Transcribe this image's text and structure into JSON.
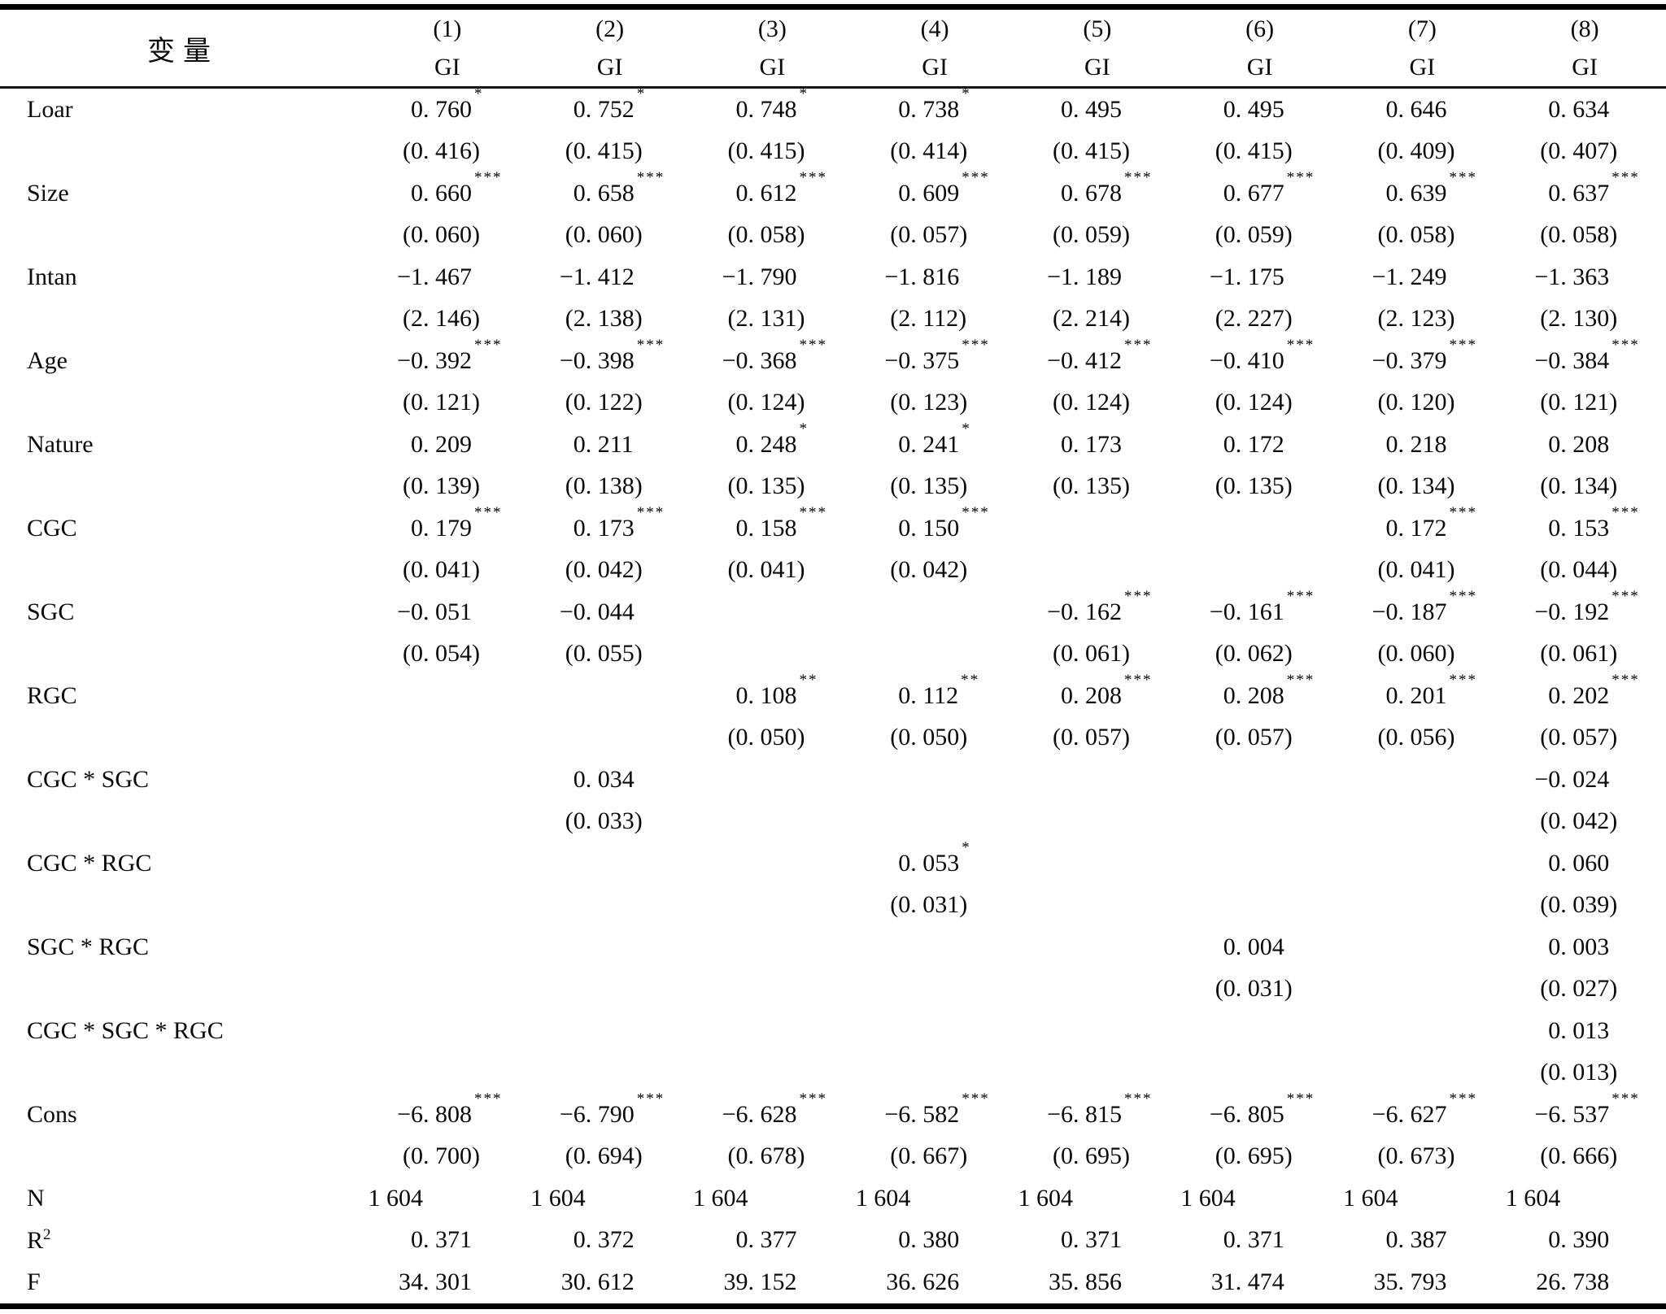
{
  "table": {
    "variable_header": "变量",
    "dependent_variable": "GI",
    "significance_note_symbols": [
      "*",
      "**",
      "***"
    ],
    "columns": [
      {
        "num": "(1)",
        "dv": "GI"
      },
      {
        "num": "(2)",
        "dv": "GI"
      },
      {
        "num": "(3)",
        "dv": "GI"
      },
      {
        "num": "(4)",
        "dv": "GI"
      },
      {
        "num": "(5)",
        "dv": "GI"
      },
      {
        "num": "(6)",
        "dv": "GI"
      },
      {
        "num": "(7)",
        "dv": "GI"
      },
      {
        "num": "(8)",
        "dv": "GI"
      }
    ],
    "rows": [
      {
        "label": "Loar",
        "cells": [
          {
            "c": "0.760",
            "s": "*",
            "e": "0.416"
          },
          {
            "c": "0.752",
            "s": "*",
            "e": "0.415"
          },
          {
            "c": "0.748",
            "s": "*",
            "e": "0.415"
          },
          {
            "c": "0.738",
            "s": "*",
            "e": "0.414"
          },
          {
            "c": "0.495",
            "s": "",
            "e": "0.415"
          },
          {
            "c": "0.495",
            "s": "",
            "e": "0.415"
          },
          {
            "c": "0.646",
            "s": "",
            "e": "0.409"
          },
          {
            "c": "0.634",
            "s": "",
            "e": "0.407"
          }
        ]
      },
      {
        "label": "Size",
        "cells": [
          {
            "c": "0.660",
            "s": "***",
            "e": "0.060"
          },
          {
            "c": "0.658",
            "s": "***",
            "e": "0.060"
          },
          {
            "c": "0.612",
            "s": "***",
            "e": "0.058"
          },
          {
            "c": "0.609",
            "s": "***",
            "e": "0.057"
          },
          {
            "c": "0.678",
            "s": "***",
            "e": "0.059"
          },
          {
            "c": "0.677",
            "s": "***",
            "e": "0.059"
          },
          {
            "c": "0.639",
            "s": "***",
            "e": "0.058"
          },
          {
            "c": "0.637",
            "s": "***",
            "e": "0.058"
          }
        ]
      },
      {
        "label": "Intan",
        "cells": [
          {
            "c": "-1.467",
            "s": "",
            "e": "2.146"
          },
          {
            "c": "-1.412",
            "s": "",
            "e": "2.138"
          },
          {
            "c": "-1.790",
            "s": "",
            "e": "2.131"
          },
          {
            "c": "-1.816",
            "s": "",
            "e": "2.112"
          },
          {
            "c": "-1.189",
            "s": "",
            "e": "2.214"
          },
          {
            "c": "-1.175",
            "s": "",
            "e": "2.227"
          },
          {
            "c": "-1.249",
            "s": "",
            "e": "2.123"
          },
          {
            "c": "-1.363",
            "s": "",
            "e": "2.130"
          }
        ]
      },
      {
        "label": "Age",
        "cells": [
          {
            "c": "-0.392",
            "s": "***",
            "e": "0.121"
          },
          {
            "c": "-0.398",
            "s": "***",
            "e": "0.122"
          },
          {
            "c": "-0.368",
            "s": "***",
            "e": "0.124"
          },
          {
            "c": "-0.375",
            "s": "***",
            "e": "0.123"
          },
          {
            "c": "-0.412",
            "s": "***",
            "e": "0.124"
          },
          {
            "c": "-0.410",
            "s": "***",
            "e": "0.124"
          },
          {
            "c": "-0.379",
            "s": "***",
            "e": "0.120"
          },
          {
            "c": "-0.384",
            "s": "***",
            "e": "0.121"
          }
        ]
      },
      {
        "label": "Nature",
        "cells": [
          {
            "c": "0.209",
            "s": "",
            "e": "0.139"
          },
          {
            "c": "0.211",
            "s": "",
            "e": "0.138"
          },
          {
            "c": "0.248",
            "s": "*",
            "e": "0.135"
          },
          {
            "c": "0.241",
            "s": "*",
            "e": "0.135"
          },
          {
            "c": "0.173",
            "s": "",
            "e": "0.135"
          },
          {
            "c": "0.172",
            "s": "",
            "e": "0.135"
          },
          {
            "c": "0.218",
            "s": "",
            "e": "0.134"
          },
          {
            "c": "0.208",
            "s": "",
            "e": "0.134"
          }
        ]
      },
      {
        "label": "CGC",
        "cells": [
          {
            "c": "0.179",
            "s": "***",
            "e": "0.041"
          },
          {
            "c": "0.173",
            "s": "***",
            "e": "0.042"
          },
          {
            "c": "0.158",
            "s": "***",
            "e": "0.041"
          },
          {
            "c": "0.150",
            "s": "***",
            "e": "0.042"
          },
          null,
          null,
          {
            "c": "0.172",
            "s": "***",
            "e": "0.041"
          },
          {
            "c": "0.153",
            "s": "***",
            "e": "0.044"
          }
        ]
      },
      {
        "label": "SGC",
        "cells": [
          {
            "c": "-0.051",
            "s": "",
            "e": "0.054"
          },
          {
            "c": "-0.044",
            "s": "",
            "e": "0.055"
          },
          null,
          null,
          {
            "c": "-0.162",
            "s": "***",
            "e": "0.061"
          },
          {
            "c": "-0.161",
            "s": "***",
            "e": "0.062"
          },
          {
            "c": "-0.187",
            "s": "***",
            "e": "0.060"
          },
          {
            "c": "-0.192",
            "s": "***",
            "e": "0.061"
          }
        ]
      },
      {
        "label": "RGC",
        "cells": [
          null,
          null,
          {
            "c": "0.108",
            "s": "**",
            "e": "0.050"
          },
          {
            "c": "0.112",
            "s": "**",
            "e": "0.050"
          },
          {
            "c": "0.208",
            "s": "***",
            "e": "0.057"
          },
          {
            "c": "0.208",
            "s": "***",
            "e": "0.057"
          },
          {
            "c": "0.201",
            "s": "***",
            "e": "0.056"
          },
          {
            "c": "0.202",
            "s": "***",
            "e": "0.057"
          }
        ]
      },
      {
        "label": "CGC * SGC",
        "cells": [
          null,
          {
            "c": "0.034",
            "s": "",
            "e": "0.033"
          },
          null,
          null,
          null,
          null,
          null,
          {
            "c": "-0.024",
            "s": "",
            "e": "0.042"
          }
        ]
      },
      {
        "label": "CGC * RGC",
        "cells": [
          null,
          null,
          null,
          {
            "c": "0.053",
            "s": "*",
            "e": "0.031"
          },
          null,
          null,
          null,
          {
            "c": "0.060",
            "s": "",
            "e": "0.039"
          }
        ]
      },
      {
        "label": "SGC * RGC",
        "cells": [
          null,
          null,
          null,
          null,
          null,
          {
            "c": "0.004",
            "s": "",
            "e": "0.031"
          },
          null,
          {
            "c": "0.003",
            "s": "",
            "e": "0.027"
          }
        ]
      },
      {
        "label": "CGC * SGC * RGC",
        "cells": [
          null,
          null,
          null,
          null,
          null,
          null,
          null,
          {
            "c": "0.013",
            "s": "",
            "e": "0.013"
          }
        ]
      },
      {
        "label": "Cons",
        "cells": [
          {
            "c": "-6.808",
            "s": "***",
            "e": "0.700"
          },
          {
            "c": "-6.790",
            "s": "***",
            "e": "0.694"
          },
          {
            "c": "-6.628",
            "s": "***",
            "e": "0.678"
          },
          {
            "c": "-6.582",
            "s": "***",
            "e": "0.667"
          },
          {
            "c": "-6.815",
            "s": "***",
            "e": "0.695"
          },
          {
            "c": "-6.805",
            "s": "***",
            "e": "0.695"
          },
          {
            "c": "-6.627",
            "s": "***",
            "e": "0.673"
          },
          {
            "c": "-6.537",
            "s": "***",
            "e": "0.666"
          }
        ]
      }
    ],
    "stats": [
      {
        "label": "N",
        "sup": "",
        "values": [
          "1 604",
          "1 604",
          "1 604",
          "1 604",
          "1 604",
          "1 604",
          "1 604",
          "1 604"
        ]
      },
      {
        "label": "R",
        "sup": "2",
        "values": [
          "0.371",
          "0.372",
          "0.377",
          "0.380",
          "0.371",
          "0.371",
          "0.387",
          "0.390"
        ]
      },
      {
        "label": "F",
        "sup": "",
        "values": [
          "34.301",
          "30.612",
          "39.152",
          "36.626",
          "35.856",
          "31.474",
          "35.793",
          "26.738"
        ]
      }
    ]
  }
}
